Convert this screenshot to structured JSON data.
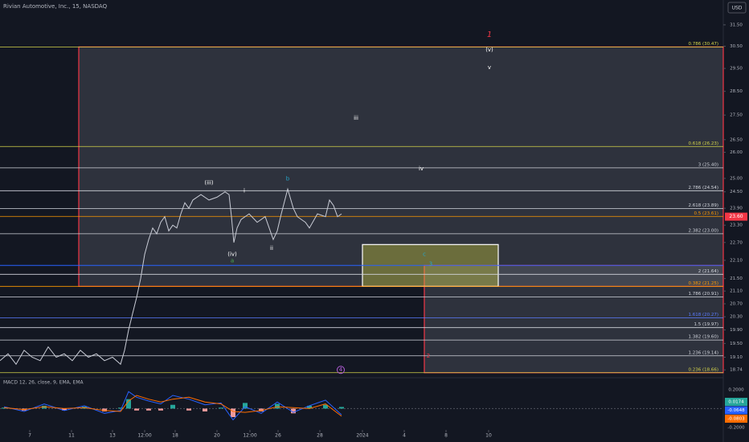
{
  "chart_data": {
    "type": "line",
    "title": "Rivian Automotive, Inc., 15, NASDAQ",
    "currency": "USD",
    "log_scale": true,
    "xlim": [
      0,
      900
    ],
    "xticks": [
      {
        "value": 37,
        "label": "7"
      },
      {
        "value": 89,
        "label": "11"
      },
      {
        "value": 140,
        "label": "13"
      },
      {
        "value": 180,
        "label": "12:00"
      },
      {
        "value": 218,
        "label": "18"
      },
      {
        "value": 270,
        "label": "20"
      },
      {
        "value": 311,
        "label": "12:00"
      },
      {
        "value": 346,
        "label": "26"
      },
      {
        "value": 398,
        "label": "28"
      },
      {
        "value": 451,
        "label": "2024"
      },
      {
        "value": 503,
        "label": "4"
      },
      {
        "value": 555,
        "label": "8"
      },
      {
        "value": 608,
        "label": "10"
      }
    ],
    "ylim": [
      18.52,
      32.7
    ],
    "yticks": [
      {
        "value": 31.5,
        "label": "31.50"
      },
      {
        "value": 30.5,
        "label": "30.50"
      },
      {
        "value": 29.5,
        "label": "29.50"
      },
      {
        "value": 28.5,
        "label": "28.50"
      },
      {
        "value": 27.5,
        "label": "27.50"
      },
      {
        "value": 26.5,
        "label": "26.50"
      },
      {
        "value": 26,
        "label": "26.00"
      },
      {
        "value": 25,
        "label": "25.00"
      },
      {
        "value": 24.5,
        "label": "24.50"
      },
      {
        "value": 23.9,
        "label": "23.90"
      },
      {
        "value": 23.3,
        "label": "23.30"
      },
      {
        "value": 22.7,
        "label": "22.70"
      },
      {
        "value": 22.1,
        "label": "22.10"
      },
      {
        "value": 21.5,
        "label": "21.50"
      },
      {
        "value": 21.1,
        "label": "21.10"
      },
      {
        "value": 20.7,
        "label": "20.70"
      },
      {
        "value": 20.3,
        "label": "20.30"
      },
      {
        "value": 19.9,
        "label": "19.90"
      },
      {
        "value": 19.5,
        "label": "19.50"
      },
      {
        "value": 19.1,
        "label": "19.10"
      },
      {
        "value": 18.74,
        "label": "18.74"
      }
    ],
    "x": [
      0,
      10,
      20,
      30,
      40,
      50,
      60,
      70,
      80,
      90,
      100,
      110,
      120,
      130,
      140,
      150,
      155,
      160,
      165,
      170,
      175,
      180,
      185,
      190,
      195,
      200,
      205,
      210,
      215,
      220,
      225,
      230,
      235,
      240,
      250,
      260,
      270,
      280,
      285,
      288,
      291,
      295,
      300,
      310,
      320,
      330,
      340,
      345,
      350,
      358,
      365,
      370,
      380,
      385,
      395,
      405,
      410,
      415,
      420,
      425
    ],
    "series": [
      {
        "color": "#c9ccd6",
        "values": [
          19.0,
          19.2,
          18.9,
          19.3,
          19.1,
          19.0,
          19.4,
          19.1,
          19.2,
          19.0,
          19.3,
          19.1,
          19.2,
          19.0,
          19.1,
          18.9,
          19.3,
          19.9,
          20.4,
          20.9,
          21.5,
          22.3,
          22.8,
          23.2,
          23.0,
          23.4,
          23.6,
          23.1,
          23.3,
          23.2,
          23.7,
          24.1,
          23.9,
          24.2,
          24.4,
          24.2,
          24.3,
          24.5,
          24.4,
          23.6,
          22.7,
          23.2,
          23.5,
          23.7,
          23.4,
          23.6,
          22.8,
          23.1,
          23.7,
          24.6,
          23.9,
          23.6,
          23.4,
          23.2,
          23.7,
          23.6,
          24.2,
          24.0,
          23.6,
          23.7
        ]
      }
    ],
    "last_price": {
      "value": 23.6,
      "label": "23.60",
      "color": "#f23645"
    },
    "zones": [
      {
        "x": [
          98,
          900
        ],
        "y": [
          21.25,
          30.47
        ],
        "fill": "rgba(120,123,134,0.28)",
        "stroke": "#f23645"
      },
      {
        "x": [
          528,
          900
        ],
        "y": [
          18.66,
          21.93
        ],
        "fill": "rgba(120,123,134,0.28)",
        "stroke": "#f23645"
      },
      {
        "x": [
          451,
          620
        ],
        "y": [
          21.25,
          22.63
        ],
        "fill": "rgba(220,220,60,0.35)",
        "stroke": "#ffffff"
      }
    ],
    "lines": [
      {
        "price": 21.93,
        "color": "#2962ff"
      }
    ],
    "levels": [
      {
        "label": "0.786 (30.47)",
        "price": 30.47,
        "color": "#d4d44a"
      },
      {
        "label": "0.618 (26.23)",
        "price": 26.23,
        "color": "#d4d44a"
      },
      {
        "label": "3 (25.40)",
        "price": 25.4,
        "color": "#d1d4dc"
      },
      {
        "label": "2.786 (24.54)",
        "price": 24.54,
        "color": "#d1d4dc"
      },
      {
        "label": "2.618 (23.89)",
        "price": 23.89,
        "color": "#d1d4dc"
      },
      {
        "label": "0.5 (23.61)",
        "price": 23.61,
        "color": "#ff9800"
      },
      {
        "label": "2.382 (23.00)",
        "price": 23.0,
        "color": "#d1d4dc"
      },
      {
        "label": "2 (21.64)",
        "price": 21.64,
        "color": "#d1d4dc"
      },
      {
        "label": "0.382 (21.25)",
        "price": 21.25,
        "color": "#ff9800"
      },
      {
        "label": "1.786 (20.91)",
        "price": 20.91,
        "color": "#d1d4dc"
      },
      {
        "label": "1.618 (20.27)",
        "price": 20.27,
        "color": "#5b7cff"
      },
      {
        "label": "1.5 (19.97)",
        "price": 19.97,
        "color": "#d1d4dc"
      },
      {
        "label": "1.382 (19.60)",
        "price": 19.6,
        "color": "#d1d4dc"
      },
      {
        "label": "1.236 (19.14)",
        "price": 19.14,
        "color": "#d1d4dc"
      },
      {
        "label": "0.236 (18.66)",
        "price": 18.66,
        "color": "#d4d44a"
      }
    ],
    "annotations": [
      {
        "text": "1",
        "x": 609,
        "y": 31.05,
        "color": "#f23645"
      },
      {
        "text": "(v)",
        "x": 609,
        "y": 30.34,
        "color": "#ffffff"
      },
      {
        "text": "v",
        "x": 609,
        "y": 29.54,
        "color": "#ffffff"
      },
      {
        "text": "iii",
        "x": 443,
        "y": 27.38,
        "color": "#ffffff"
      },
      {
        "text": "iv",
        "x": 524,
        "y": 25.37,
        "color": "#ffffff"
      },
      {
        "text": "(iii)",
        "x": 260,
        "y": 24.84,
        "color": "#ffffff"
      },
      {
        "text": "i",
        "x": 304,
        "y": 24.54,
        "color": "#ffffff"
      },
      {
        "text": "b",
        "x": 358,
        "y": 24.99,
        "color": "#26a6c9"
      },
      {
        "text": "(iv)",
        "x": 289,
        "y": 22.3,
        "color": "#ffffff"
      },
      {
        "text": "a",
        "x": 289,
        "y": 22.09,
        "color": "#4caf50"
      },
      {
        "text": "ii",
        "x": 338,
        "y": 22.5,
        "color": "#ffffff"
      },
      {
        "text": "c",
        "x": 528,
        "y": 22.3,
        "color": "#26a6c9"
      },
      {
        "text": "3",
        "x": 536,
        "y": 21.98,
        "color": "#26a6c9"
      },
      {
        "text": "2",
        "x": 533,
        "y": 19.14,
        "color": "#f23645"
      },
      {
        "text": "4",
        "x": 424,
        "y": 18.74,
        "color": "#b05cd6"
      }
    ],
    "macd": {
      "label": "MACD 12, 26, close, 9, EMA, EMA",
      "ylim": [
        -0.226,
        0.31
      ],
      "yticks": [
        {
          "value": 0.2,
          "label": "0.2000"
        },
        {
          "value": -0.2,
          "label": "-0.2000"
        }
      ],
      "x": [
        5,
        30,
        55,
        80,
        105,
        130,
        150,
        160,
        170,
        185,
        200,
        215,
        235,
        255,
        275,
        290,
        305,
        325,
        345,
        365,
        385,
        405,
        425
      ],
      "macd": [
        0.02,
        -0.03,
        0.05,
        -0.02,
        0.03,
        -0.05,
        -0.02,
        0.18,
        0.12,
        0.08,
        0.05,
        0.14,
        0.1,
        0.04,
        0.06,
        -0.12,
        0.02,
        -0.05,
        0.07,
        -0.04,
        0.03,
        0.09,
        -0.0648
      ],
      "signal": [
        0.01,
        -0.01,
        0.02,
        0.0,
        0.01,
        -0.02,
        -0.03,
        0.08,
        0.14,
        0.1,
        0.07,
        0.1,
        0.12,
        0.07,
        0.05,
        -0.03,
        -0.04,
        -0.02,
        0.02,
        0.01,
        0.0,
        0.05,
        -0.0803
      ],
      "hist": [
        0.01,
        -0.02,
        0.03,
        -0.02,
        0.02,
        -0.03,
        0.01,
        0.1,
        -0.02,
        -0.02,
        -0.02,
        0.04,
        -0.02,
        -0.03,
        0.01,
        -0.09,
        0.06,
        -0.03,
        0.05,
        -0.05,
        0.03,
        0.04,
        0.0174
      ],
      "macd_color": "#2962ff",
      "signal_color": "#ff6d00",
      "current": [
        {
          "value": 0.0174,
          "label": "0.0174",
          "color": "#26a69a"
        },
        {
          "value": -0.0648,
          "label": "-0.0648",
          "color": "#2962ff"
        },
        {
          "value": -0.0803,
          "label": "-0.0803",
          "color": "#ff6d00"
        }
      ]
    }
  }
}
